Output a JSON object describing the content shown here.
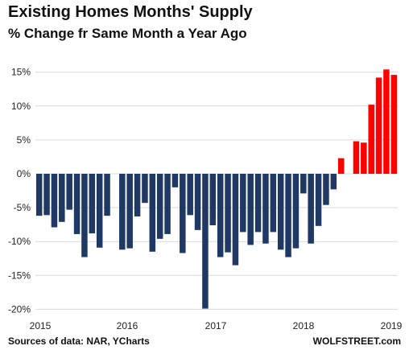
{
  "chart_data": {
    "type": "bar",
    "title": "Existing Homes Months' Supply",
    "subtitle": "% Change fr Same Month a Year Ago",
    "ylim": [
      -20,
      17
    ],
    "y_ticks": [
      -20,
      -15,
      -10,
      -5,
      0,
      5,
      10,
      15
    ],
    "y_tick_labels": [
      "-20%",
      "-15%",
      "-10%",
      "-5%",
      "0%",
      "5%",
      "10%",
      "15%"
    ],
    "x_tick_labels": [
      "2015",
      "2016",
      "2017",
      "2018",
      "2019"
    ],
    "grid": true,
    "colors": {
      "negative": "#1f3864",
      "positive": "#ff0000",
      "grid": "#d9d9d9"
    },
    "categories": [
      "2015-01",
      "2015-02",
      "2015-03",
      "2015-04",
      "2015-05",
      "2015-06",
      "2015-07",
      "2015-08",
      "2015-09",
      "2015-10",
      "2015-11",
      "2015-12",
      "2016-01",
      "2016-02",
      "2016-03",
      "2016-04",
      "2016-05",
      "2016-06",
      "2016-07",
      "2016-08",
      "2016-09",
      "2016-10",
      "2016-11",
      "2016-12",
      "2017-01",
      "2017-02",
      "2017-03",
      "2017-04",
      "2017-05",
      "2017-06",
      "2017-07",
      "2017-08",
      "2017-09",
      "2017-10",
      "2017-11",
      "2017-12",
      "2018-01",
      "2018-02",
      "2018-03",
      "2018-04",
      "2018-05",
      "2018-06",
      "2018-07",
      "2018-08",
      "2018-09",
      "2018-10",
      "2018-11",
      "2018-12"
    ],
    "values": [
      -6.2,
      -6.1,
      -7.9,
      -7.1,
      -5.3,
      -8.9,
      -12.3,
      -8.8,
      -10.9,
      -6.2,
      0,
      -11.2,
      -11.0,
      -6.3,
      -4.3,
      -11.5,
      -9.6,
      -8.9,
      -2.0,
      -11.7,
      -6.1,
      -8.3,
      -19.9,
      -7.6,
      -12.3,
      -11.6,
      -13.5,
      -8.6,
      -10.5,
      -8.6,
      -10.3,
      -8.6,
      -11.2,
      -12.3,
      -11.0,
      -2.9,
      -10.3,
      -7.7,
      -4.6,
      -2.3,
      2.3,
      0,
      4.8,
      4.6,
      10.2,
      14.2,
      15.4,
      14.6
    ]
  },
  "source": "Sources of data: NAR, YCharts",
  "brand": "WOLFSTREET.com"
}
